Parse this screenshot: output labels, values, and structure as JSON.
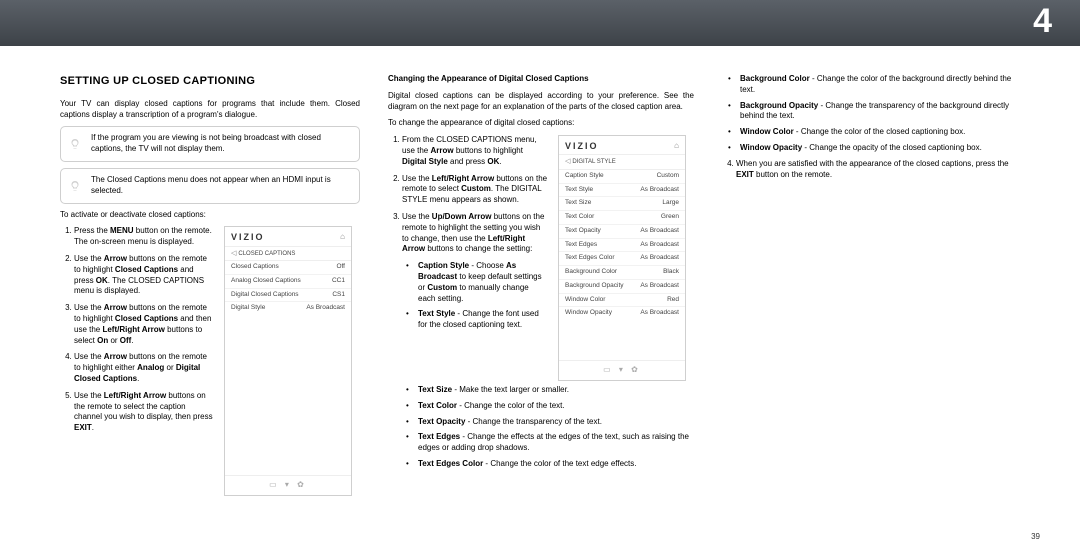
{
  "chapter": "4",
  "page_number": "39",
  "heading": "SETTING UP CLOSED CAPTIONING",
  "intro": "Your TV can display closed captions for programs that include them. Closed captions display a transcription of a program's dialogue.",
  "callout1": "If the program you are viewing is not being broadcast with closed captions, the TV will not display them.",
  "callout2": "The Closed Captions menu does not appear when an HDMI input is selected.",
  "activate_lead": "To activate or deactivate closed captions:",
  "steps_a": [
    "Press the <b>MENU</b> button on the remote. The on-screen menu is displayed.",
    "Use the <b>Arrow</b> buttons on the remote to highlight <b>Closed Captions</b> and press <b>OK</b>. The CLOSED CAPTIONS menu is displayed.",
    "Use the <b>Arrow</b> buttons on the remote to highlight <b>Closed Captions</b> and then use the <b>Left/Right Arrow</b> buttons to select <b>On</b> or <b>Off</b>.",
    "Use the <b>Arrow</b> buttons on the remote to highlight either <b>Analog</b> or <b>Digital Closed Captions</b>.",
    "Use the <b>Left/Right Arrow</b> buttons on the remote to select the caption channel you wish to display, then press <b>EXIT</b>."
  ],
  "menu_a": {
    "brand": "VIZIO",
    "sub": "CLOSED CAPTIONS",
    "rows": [
      [
        "Closed Captions",
        "Off"
      ],
      [
        "Analog Closed Captions",
        "CC1"
      ],
      [
        "Digital Closed Captions",
        "CS1"
      ],
      [
        "Digital Style",
        "As Broadcast"
      ]
    ]
  },
  "col2_head": "Changing the Appearance of Digital Closed Captions",
  "col2_intro": "Digital closed captions can be displayed according to your preference. See the diagram on the next page for an explanation of the parts of the closed caption area.",
  "change_lead": "To change the appearance of digital closed captions:",
  "steps_b": [
    "From the CLOSED CAPTIONS menu, use the <b>Arrow</b> buttons to highlight <b>Digital Style</b> and press <b>OK</b>.",
    "Use the <b>Left/Right Arrow</b> buttons on the remote to select <b>Custom</b>. The DIGITAL STYLE menu appears as shown.",
    "Use the <b>Up/Down Arrow</b> buttons on the remote to highlight the setting you wish to change, then use the <b>Left/Right Arrow</b> buttons to change the setting:"
  ],
  "bullets_inner": [
    "<b>Caption Style</b> - Choose <b>As Broadcast</b> to keep default settings or <b>Custom</b> to manually change each setting.",
    "<b>Text Style</b>  - Change the font used for the closed captioning text."
  ],
  "bullets_full": [
    "<b>Text Size</b> - Make the text larger or smaller.",
    "<b>Text Color</b> - Change the color of the text.",
    "<b>Text Opacity</b> - Change the transparency of the text.",
    "<b>Text Edges</b> - Change the effects at the edges of the text, such as raising the edges or adding drop shadows.",
    "<b>Text Edges Color</b> - Change the color of the text edge effects."
  ],
  "menu_b": {
    "brand": "VIZIO",
    "sub": "DIGITAL STYLE",
    "rows": [
      [
        "Caption Style",
        "Custom"
      ],
      [
        "Text Style",
        "As Broadcast"
      ],
      [
        "Text Size",
        "Large"
      ],
      [
        "Text Color",
        "Green"
      ],
      [
        "Text Opacity",
        "As Broadcast"
      ],
      [
        "Text Edges",
        "As Broadcast"
      ],
      [
        "Text Edges Color",
        "As Broadcast"
      ],
      [
        "Background Color",
        "Black"
      ],
      [
        "Background Opacity",
        "As Broadcast"
      ],
      [
        "Window Color",
        "Red"
      ],
      [
        "Window Opacity",
        "As Broadcast"
      ]
    ]
  },
  "bullets_col3": [
    "<b>Background Color</b> - Change the color of the background directly behind the text.",
    "<b>Background Opacity</b> - Change the transparency of the background directly behind the text.",
    "<b>Window Color</b> - Change the color of the closed captioning box.",
    "<b>Window Opacity</b> - Change the opacity of the closed captioning box."
  ],
  "step4": "When you are satisfied with the appearance of the closed captions, press the <b>EXIT</b> button on the remote.",
  "foot_icons": "▭  ▾  ✿"
}
